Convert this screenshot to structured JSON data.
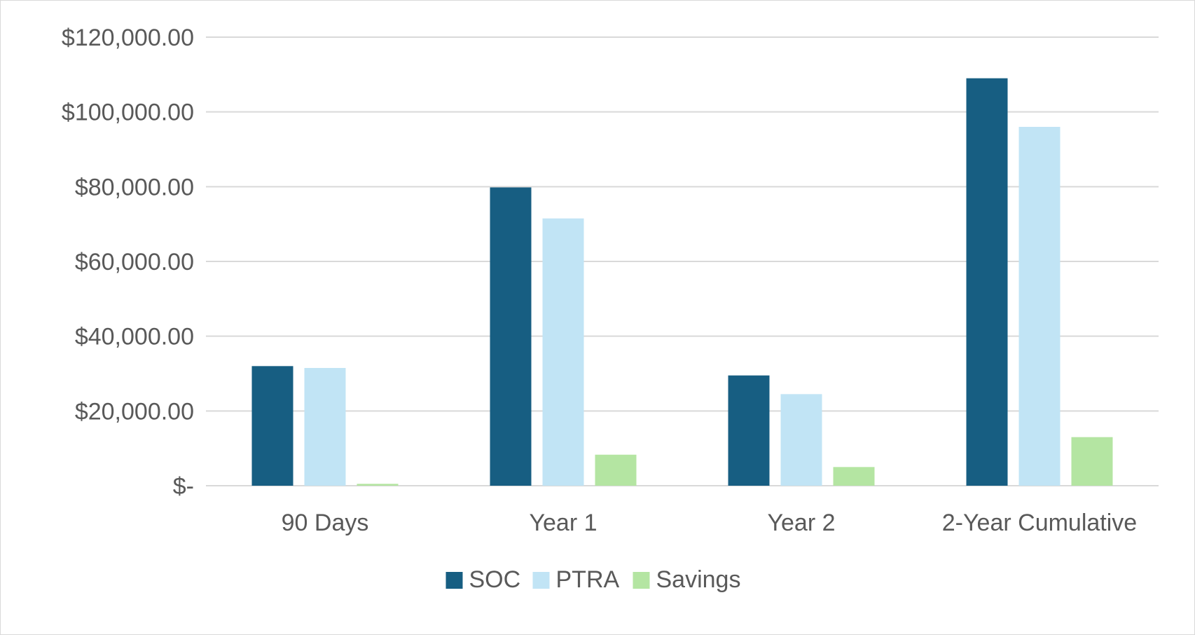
{
  "chart_data": {
    "type": "bar",
    "categories": [
      "90 Days",
      "Year 1",
      "Year 2",
      "2-Year Cumulative"
    ],
    "series": [
      {
        "name": "SOC",
        "color": "#175e82",
        "values": [
          32000,
          79800,
          29500,
          109000
        ]
      },
      {
        "name": "PTRA",
        "color": "#c1e4f5",
        "values": [
          31500,
          71500,
          24500,
          96000
        ]
      },
      {
        "name": "Savings",
        "color": "#b4e5a2",
        "values": [
          500,
          8300,
          5000,
          13000
        ]
      }
    ],
    "ylim": [
      0,
      120000
    ],
    "yticks": [
      0,
      20000,
      40000,
      60000,
      80000,
      100000,
      120000
    ],
    "ytick_labels": [
      "$-",
      "$20,000.00",
      "$40,000.00",
      "$60,000.00",
      "$80,000.00",
      "$100,000.00",
      "$120,000.00"
    ],
    "title": "",
    "xlabel": "",
    "ylabel": "",
    "grid": true,
    "legend_position": "bottom",
    "gridline_color": "#d9d9d9"
  }
}
